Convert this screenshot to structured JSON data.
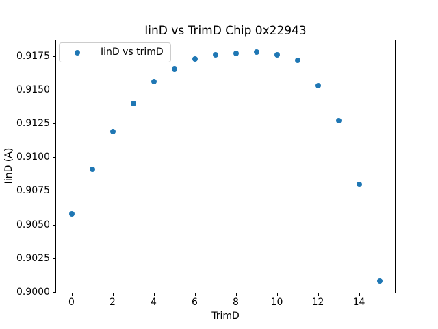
{
  "chart_data": {
    "type": "scatter",
    "title": "IinD vs TrimD Chip 0x22943",
    "xlabel": "TrimD",
    "ylabel": "IinD (A)",
    "legend_label": "IinD vs trimD",
    "legend_position": "upper-left",
    "grid": false,
    "x": [
      0,
      1,
      2,
      3,
      4,
      5,
      6,
      7,
      8,
      9,
      10,
      11,
      12,
      13,
      14,
      15
    ],
    "y": [
      0.9058,
      0.9091,
      0.9119,
      0.914,
      0.9156,
      0.9165,
      0.9173,
      0.9176,
      0.9177,
      0.9178,
      0.9176,
      0.9172,
      0.9153,
      0.9127,
      0.908,
      0.9008
    ],
    "xlim": [
      -0.75,
      15.75
    ],
    "ylim": [
      0.89995,
      0.91865
    ],
    "xticks": [
      0,
      2,
      4,
      6,
      8,
      10,
      12,
      14
    ],
    "ytick_labels": [
      "0.9000",
      "0.9025",
      "0.9050",
      "0.9075",
      "0.9100",
      "0.9125",
      "0.9150",
      "0.9175"
    ],
    "marker_shape": "circle",
    "marker_color": "#1f77b4",
    "axis_color": "#000000",
    "background_color": "#ffffff",
    "legend_border_color": "#cccccc"
  }
}
